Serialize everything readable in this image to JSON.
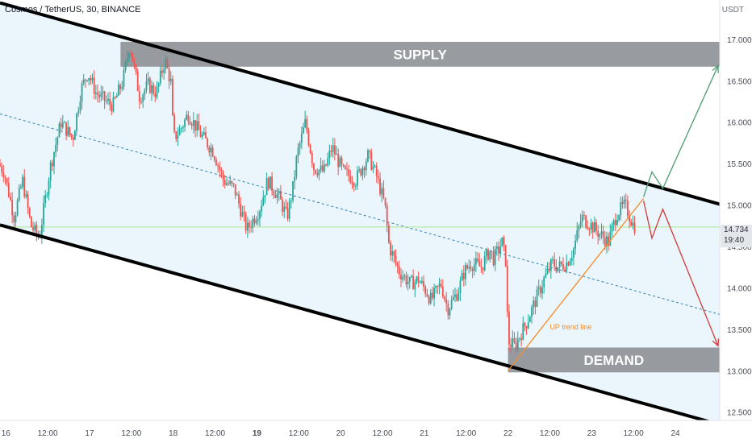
{
  "header": {
    "title": "Cosmos / TetherUS, 30, BINANCE"
  },
  "axis": {
    "unit": "USDT"
  },
  "price_tag": {
    "price": "14.734",
    "countdown": "19:40"
  },
  "colors": {
    "channel_fill": "#eaf6fb",
    "zone": "#8f9298",
    "candle_up": "#26a69a",
    "candle_down": "#ef5350",
    "midline": "#2f7fb3",
    "trendline": "#f48b2a",
    "bull_arrow": "#4c9a6e",
    "bear_arrow": "#d43b3b",
    "price_line": "#9be27d"
  },
  "chart_data": {
    "type": "candlestick",
    "symbol": "Cosmos / TetherUS",
    "interval": "30",
    "exchange": "BINANCE",
    "ylim": [
      12.4,
      17.3
    ],
    "y_ticks": [
      "17.000",
      "16.500",
      "16.000",
      "15.500",
      "15.000",
      "14.500",
      "14.000",
      "13.500",
      "13.000",
      "12.500"
    ],
    "x_ticks": [
      {
        "label": "16",
        "day": 16.0
      },
      {
        "label": "12:00",
        "day": 16.5
      },
      {
        "label": "17",
        "day": 17.0
      },
      {
        "label": "12:00",
        "day": 17.5
      },
      {
        "label": "18",
        "day": 18.0
      },
      {
        "label": "12:00",
        "day": 18.5
      },
      {
        "label": "19",
        "day": 19.0,
        "bold": true
      },
      {
        "label": "12:00",
        "day": 19.5
      },
      {
        "label": "20",
        "day": 20.0
      },
      {
        "label": "12:00",
        "day": 20.5
      },
      {
        "label": "21",
        "day": 21.0
      },
      {
        "label": "12:00",
        "day": 21.5
      },
      {
        "label": "22",
        "day": 22.0
      },
      {
        "label": "12:00",
        "day": 22.5
      },
      {
        "label": "23",
        "day": 23.0
      },
      {
        "label": "12:00",
        "day": 23.5
      },
      {
        "label": "24",
        "day": 24.0
      }
    ],
    "xlim": [
      15.93,
      24.53
    ],
    "last_price": 14.734,
    "price_path": [
      [
        15.93,
        15.5
      ],
      [
        16.0,
        15.4
      ],
      [
        16.12,
        14.85
      ],
      [
        16.22,
        15.3
      ],
      [
        16.32,
        14.75
      ],
      [
        16.42,
        14.6
      ],
      [
        16.55,
        15.45
      ],
      [
        16.68,
        16.0
      ],
      [
        16.82,
        15.8
      ],
      [
        16.92,
        16.4
      ],
      [
        17.0,
        16.6
      ],
      [
        17.1,
        16.35
      ],
      [
        17.22,
        16.25
      ],
      [
        17.3,
        16.2
      ],
      [
        17.42,
        16.5
      ],
      [
        17.5,
        16.95
      ],
      [
        17.62,
        16.3
      ],
      [
        17.72,
        16.45
      ],
      [
        17.82,
        16.35
      ],
      [
        17.92,
        16.75
      ],
      [
        18.0,
        16.45
      ],
      [
        18.02,
        15.8
      ],
      [
        18.1,
        15.9
      ],
      [
        18.2,
        16.1
      ],
      [
        18.35,
        15.85
      ],
      [
        18.5,
        15.65
      ],
      [
        18.62,
        15.3
      ],
      [
        18.75,
        15.2
      ],
      [
        18.9,
        14.7
      ],
      [
        19.05,
        14.95
      ],
      [
        19.15,
        15.3
      ],
      [
        19.28,
        15.1
      ],
      [
        19.38,
        14.85
      ],
      [
        19.45,
        15.2
      ],
      [
        19.5,
        15.6
      ],
      [
        19.6,
        16.0
      ],
      [
        19.7,
        15.45
      ],
      [
        19.82,
        15.4
      ],
      [
        19.92,
        15.7
      ],
      [
        20.05,
        15.4
      ],
      [
        20.2,
        15.3
      ],
      [
        20.35,
        15.6
      ],
      [
        20.45,
        15.35
      ],
      [
        20.55,
        15.0
      ],
      [
        20.6,
        14.5
      ],
      [
        20.72,
        14.2
      ],
      [
        20.85,
        14.05
      ],
      [
        20.95,
        14.1
      ],
      [
        21.05,
        13.95
      ],
      [
        21.1,
        13.85
      ],
      [
        21.22,
        14.05
      ],
      [
        21.3,
        13.75
      ],
      [
        21.42,
        13.95
      ],
      [
        21.5,
        14.2
      ],
      [
        21.58,
        14.3
      ],
      [
        21.7,
        14.25
      ],
      [
        21.8,
        14.45
      ],
      [
        21.85,
        14.35
      ],
      [
        21.95,
        14.55
      ],
      [
        22.0,
        14.3
      ],
      [
        22.02,
        13.35
      ],
      [
        22.1,
        13.3
      ],
      [
        22.25,
        13.6
      ],
      [
        22.35,
        13.85
      ],
      [
        22.45,
        14.1
      ],
      [
        22.55,
        14.3
      ],
      [
        22.62,
        14.25
      ],
      [
        22.72,
        14.3
      ],
      [
        22.8,
        14.45
      ],
      [
        22.9,
        14.85
      ],
      [
        23.02,
        14.75
      ],
      [
        23.12,
        14.65
      ],
      [
        23.22,
        14.55
      ],
      [
        23.32,
        14.9
      ],
      [
        23.42,
        15.0
      ],
      [
        23.52,
        14.75
      ]
    ],
    "channel": {
      "upper": [
        [
          15.93,
          17.44
        ],
        [
          24.53,
          15.01
        ]
      ],
      "lower": [
        [
          15.93,
          14.76
        ],
        [
          24.53,
          12.35
        ]
      ],
      "mid": [
        [
          15.93,
          16.1
        ],
        [
          24.53,
          13.68
        ]
      ]
    },
    "zones": [
      {
        "label": "SUPPLY",
        "from": 17.37,
        "to": 24.53,
        "top": 16.97,
        "bottom": 16.67
      },
      {
        "label": "DEMAND",
        "from": 22.0,
        "to": 24.53,
        "top": 13.28,
        "bottom": 12.98
      }
    ],
    "trend_line": {
      "label": "UP trend line",
      "points": [
        [
          22.0,
          13.0
        ],
        [
          23.62,
          15.08
        ]
      ]
    },
    "projections": {
      "bullish": [
        [
          23.62,
          15.1
        ],
        [
          23.72,
          15.4
        ],
        [
          23.85,
          15.2
        ],
        [
          24.51,
          16.68
        ]
      ],
      "bearish": [
        [
          23.62,
          15.05
        ],
        [
          23.72,
          14.6
        ],
        [
          23.85,
          14.95
        ],
        [
          24.51,
          13.3
        ]
      ]
    }
  }
}
